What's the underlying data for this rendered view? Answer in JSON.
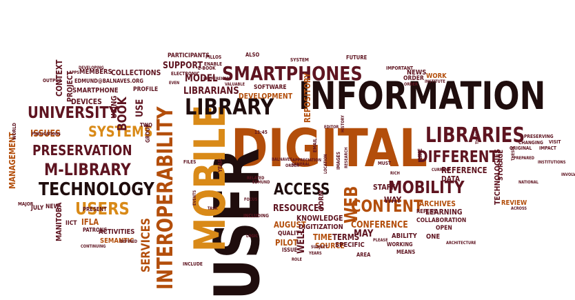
{
  "cloud": {
    "words": [
      {
        "text": "INFORMATION",
        "c": 0
      },
      {
        "text": "DIGITAL",
        "c": 2
      },
      {
        "text": "USER",
        "c": 0
      },
      {
        "text": "MOBILE",
        "c": 3
      },
      {
        "text": "LIBRARY",
        "c": 0
      },
      {
        "text": "LIBRARIES",
        "c": 1
      },
      {
        "text": "SMARTPHONES",
        "c": 1
      },
      {
        "text": "INTEROPERABILITY",
        "c": 2
      },
      {
        "text": "TECHNOLOGY",
        "c": 0
      },
      {
        "text": "M-LIBRARY",
        "c": 1
      },
      {
        "text": "PRESERVATION",
        "c": 1
      },
      {
        "text": "SYSTEMS",
        "c": 3
      },
      {
        "text": "UNIVERSITY",
        "c": 1
      },
      {
        "text": "USERS",
        "c": 3
      },
      {
        "text": "MOBILITY",
        "c": 1
      },
      {
        "text": "CONTENT",
        "c": 2
      },
      {
        "text": "ACCESS",
        "c": 0
      },
      {
        "text": "WEB",
        "c": 2
      },
      {
        "text": "DIFFERENT",
        "c": 1
      },
      {
        "text": "LIBRARIANS",
        "c": 1
      },
      {
        "text": "BOOK",
        "c": 1
      },
      {
        "text": "SERVICES",
        "c": 2
      },
      {
        "text": "RESOURCES",
        "c": 1
      },
      {
        "text": "CONFERENCE",
        "c": 2
      },
      {
        "text": "MODEL",
        "c": 1
      },
      {
        "text": "ISSUES",
        "c": 2
      },
      {
        "text": "DEVELOPMENT",
        "c": 2
      },
      {
        "text": "SUPPORT",
        "c": 1
      },
      {
        "text": "COLLECTIONS",
        "c": 1
      },
      {
        "text": "CONTEXT",
        "c": 1
      },
      {
        "text": "MANAGEMENT",
        "c": 2
      },
      {
        "text": "AUGUST",
        "c": 2
      },
      {
        "text": "IFLA",
        "c": 2
      },
      {
        "text": "ACTIVITIES",
        "c": 1
      },
      {
        "text": "SEMANTIC",
        "c": 2
      },
      {
        "text": "PROJECT",
        "c": 1
      },
      {
        "text": "REFERENCE",
        "c": 1
      },
      {
        "text": "DATA",
        "c": 1
      },
      {
        "text": "ARCHIVES",
        "c": 2
      },
      {
        "text": "LEARNING",
        "c": 1
      },
      {
        "text": "COLLABORATION",
        "c": 1
      },
      {
        "text": "KNOWLEDGE",
        "c": 1
      },
      {
        "text": "DIGITIZATION",
        "c": 1
      },
      {
        "text": "TIME",
        "c": 2
      },
      {
        "text": "TERMS",
        "c": 1
      },
      {
        "text": "MAY",
        "c": 1
      },
      {
        "text": "ABILITY",
        "c": 1
      },
      {
        "text": "ONE",
        "c": 1
      },
      {
        "text": "OPEN",
        "c": 1
      },
      {
        "text": "SOURCE",
        "c": 2
      },
      {
        "text": "SPECIFIC",
        "c": 1
      },
      {
        "text": "PILOT",
        "c": 2
      },
      {
        "text": "WAY",
        "c": 1
      },
      {
        "text": "STAFF",
        "c": 1
      },
      {
        "text": "FORM",
        "c": 1
      },
      {
        "text": "WELL",
        "c": 1
      },
      {
        "text": "QUALITY",
        "c": 1
      },
      {
        "text": "REPOSITORY",
        "c": 2
      },
      {
        "text": "SOFTWARE",
        "c": 1
      },
      {
        "text": "TECHNOLOGIES",
        "c": 1
      },
      {
        "text": "STORAGE",
        "c": 1
      },
      {
        "text": "REVIEW",
        "c": 2
      },
      {
        "text": "USE",
        "c": 1
      },
      {
        "text": "USING",
        "c": 1
      },
      {
        "text": "DEVICES",
        "c": 1
      },
      {
        "text": "SMARTPHONE",
        "c": 1
      },
      {
        "text": "PROFILE",
        "c": 1
      },
      {
        "text": "MEMBERS",
        "c": 1
      },
      {
        "text": "PARTICIPANTS",
        "c": 1
      },
      {
        "text": "EDMUND@BALNAVES.ORG",
        "c": 1
      },
      {
        "text": "WORK",
        "c": 2
      },
      {
        "text": "NEWS",
        "c": 1
      },
      {
        "text": "ORDER",
        "c": 1
      },
      {
        "text": "MANITOBA",
        "c": 1
      },
      {
        "text": "IICT",
        "c": 1
      },
      {
        "text": "NEW",
        "c": 1
      },
      {
        "text": "JULY",
        "c": 1
      },
      {
        "text": "MEANS",
        "c": 1
      },
      {
        "text": "AREA",
        "c": 1
      },
      {
        "text": "WORKING",
        "c": 1
      },
      {
        "text": "PATRONS",
        "c": 1
      },
      {
        "text": "PRESENT",
        "c": 1
      },
      {
        "text": "INCLUDE",
        "c": 1
      },
      {
        "text": "FUTURE",
        "c": 1
      },
      {
        "text": "IMPORTANT",
        "c": 1
      },
      {
        "text": "ALSO",
        "c": 1
      },
      {
        "text": "SYSTEM",
        "c": 1
      },
      {
        "text": "PILLOS",
        "c": 1
      },
      {
        "text": "ENABLE",
        "c": 1
      },
      {
        "text": "E-BOOK",
        "c": 1
      },
      {
        "text": "ELECTRONIC",
        "c": 1
      },
      {
        "text": "PREFERENCES",
        "c": 1
      },
      {
        "text": "VALUABLE",
        "c": 1
      },
      {
        "text": "INSTITUTE",
        "c": 1
      },
      {
        "text": "PRESERVING",
        "c": 1
      },
      {
        "text": "CHANGING",
        "c": 1
      },
      {
        "text": "VISIT",
        "c": 1
      },
      {
        "text": "ORIGINAL",
        "c": 1
      },
      {
        "text": "IMPACT",
        "c": 1
      },
      {
        "text": "NATIONAL",
        "c": 1
      },
      {
        "text": "PREPARED",
        "c": 1
      },
      {
        "text": "CURRENT",
        "c": 1
      },
      {
        "text": "REFERS",
        "c": 1
      },
      {
        "text": "YEAR",
        "c": 1
      },
      {
        "text": "INCLUDING",
        "c": 1
      },
      {
        "text": "TASK",
        "c": 1
      },
      {
        "text": "EVENTS",
        "c": 1
      },
      {
        "text": "FOCUS",
        "c": 1
      },
      {
        "text": "EMAIL",
        "c": 1
      },
      {
        "text": "IMAGES",
        "c": 1
      },
      {
        "text": "MUST",
        "c": 1
      },
      {
        "text": "EDITOR",
        "c": 1
      },
      {
        "text": "HISTORY",
        "c": 1
      },
      {
        "text": "GROUP",
        "c": 1
      },
      {
        "text": "MAJOR",
        "c": 1
      },
      {
        "text": "WORLD",
        "c": 1
      },
      {
        "text": "OUTPUT",
        "c": 1
      },
      {
        "text": "APPS",
        "c": 1
      },
      {
        "text": "DEVELOPING",
        "c": 1
      },
      {
        "text": "PUBLICATIONS",
        "c": 1
      },
      {
        "text": "TWO",
        "c": 1
      },
      {
        "text": "ISSUE",
        "c": 1
      },
      {
        "text": "YEARS",
        "c": 1
      },
      {
        "text": "SUBJECT",
        "c": 1
      },
      {
        "text": "ROLE",
        "c": 1
      },
      {
        "text": "LOGIC",
        "c": 1
      },
      {
        "text": "PLEASE",
        "c": 1
      },
      {
        "text": "EDMUND",
        "c": 1
      },
      {
        "text": "RELATED",
        "c": 1
      },
      {
        "text": "APPRECIATION",
        "c": 1
      },
      {
        "text": "BALNAVES",
        "c": 1
      },
      {
        "text": "GENERAL",
        "c": 1
      },
      {
        "text": "ORDER",
        "c": 1
      },
      {
        "text": "LOCATION",
        "c": 1
      },
      {
        "text": "RESEARCH",
        "c": 1
      },
      {
        "text": "RICH",
        "c": 1
      },
      {
        "text": "LIKE",
        "c": 1
      },
      {
        "text": "INVOLVED",
        "c": 1
      },
      {
        "text": "ACROSS",
        "c": 1
      },
      {
        "text": "ARCHITECTURE",
        "c": 1
      },
      {
        "text": "CONTINUING",
        "c": 1
      },
      {
        "text": "THESIS",
        "c": 1
      },
      {
        "text": "DEFINED",
        "c": 1
      },
      {
        "text": "EVEN",
        "c": 1
      },
      {
        "text": "FILES",
        "c": 1
      },
      {
        "text": "INSTITUTIONS",
        "c": 1
      },
      {
        "text": "THREE",
        "c": 1
      },
      {
        "text": "13:45",
        "c": 1
      },
      {
        "text": "ORDER",
        "c": 1
      }
    ]
  }
}
